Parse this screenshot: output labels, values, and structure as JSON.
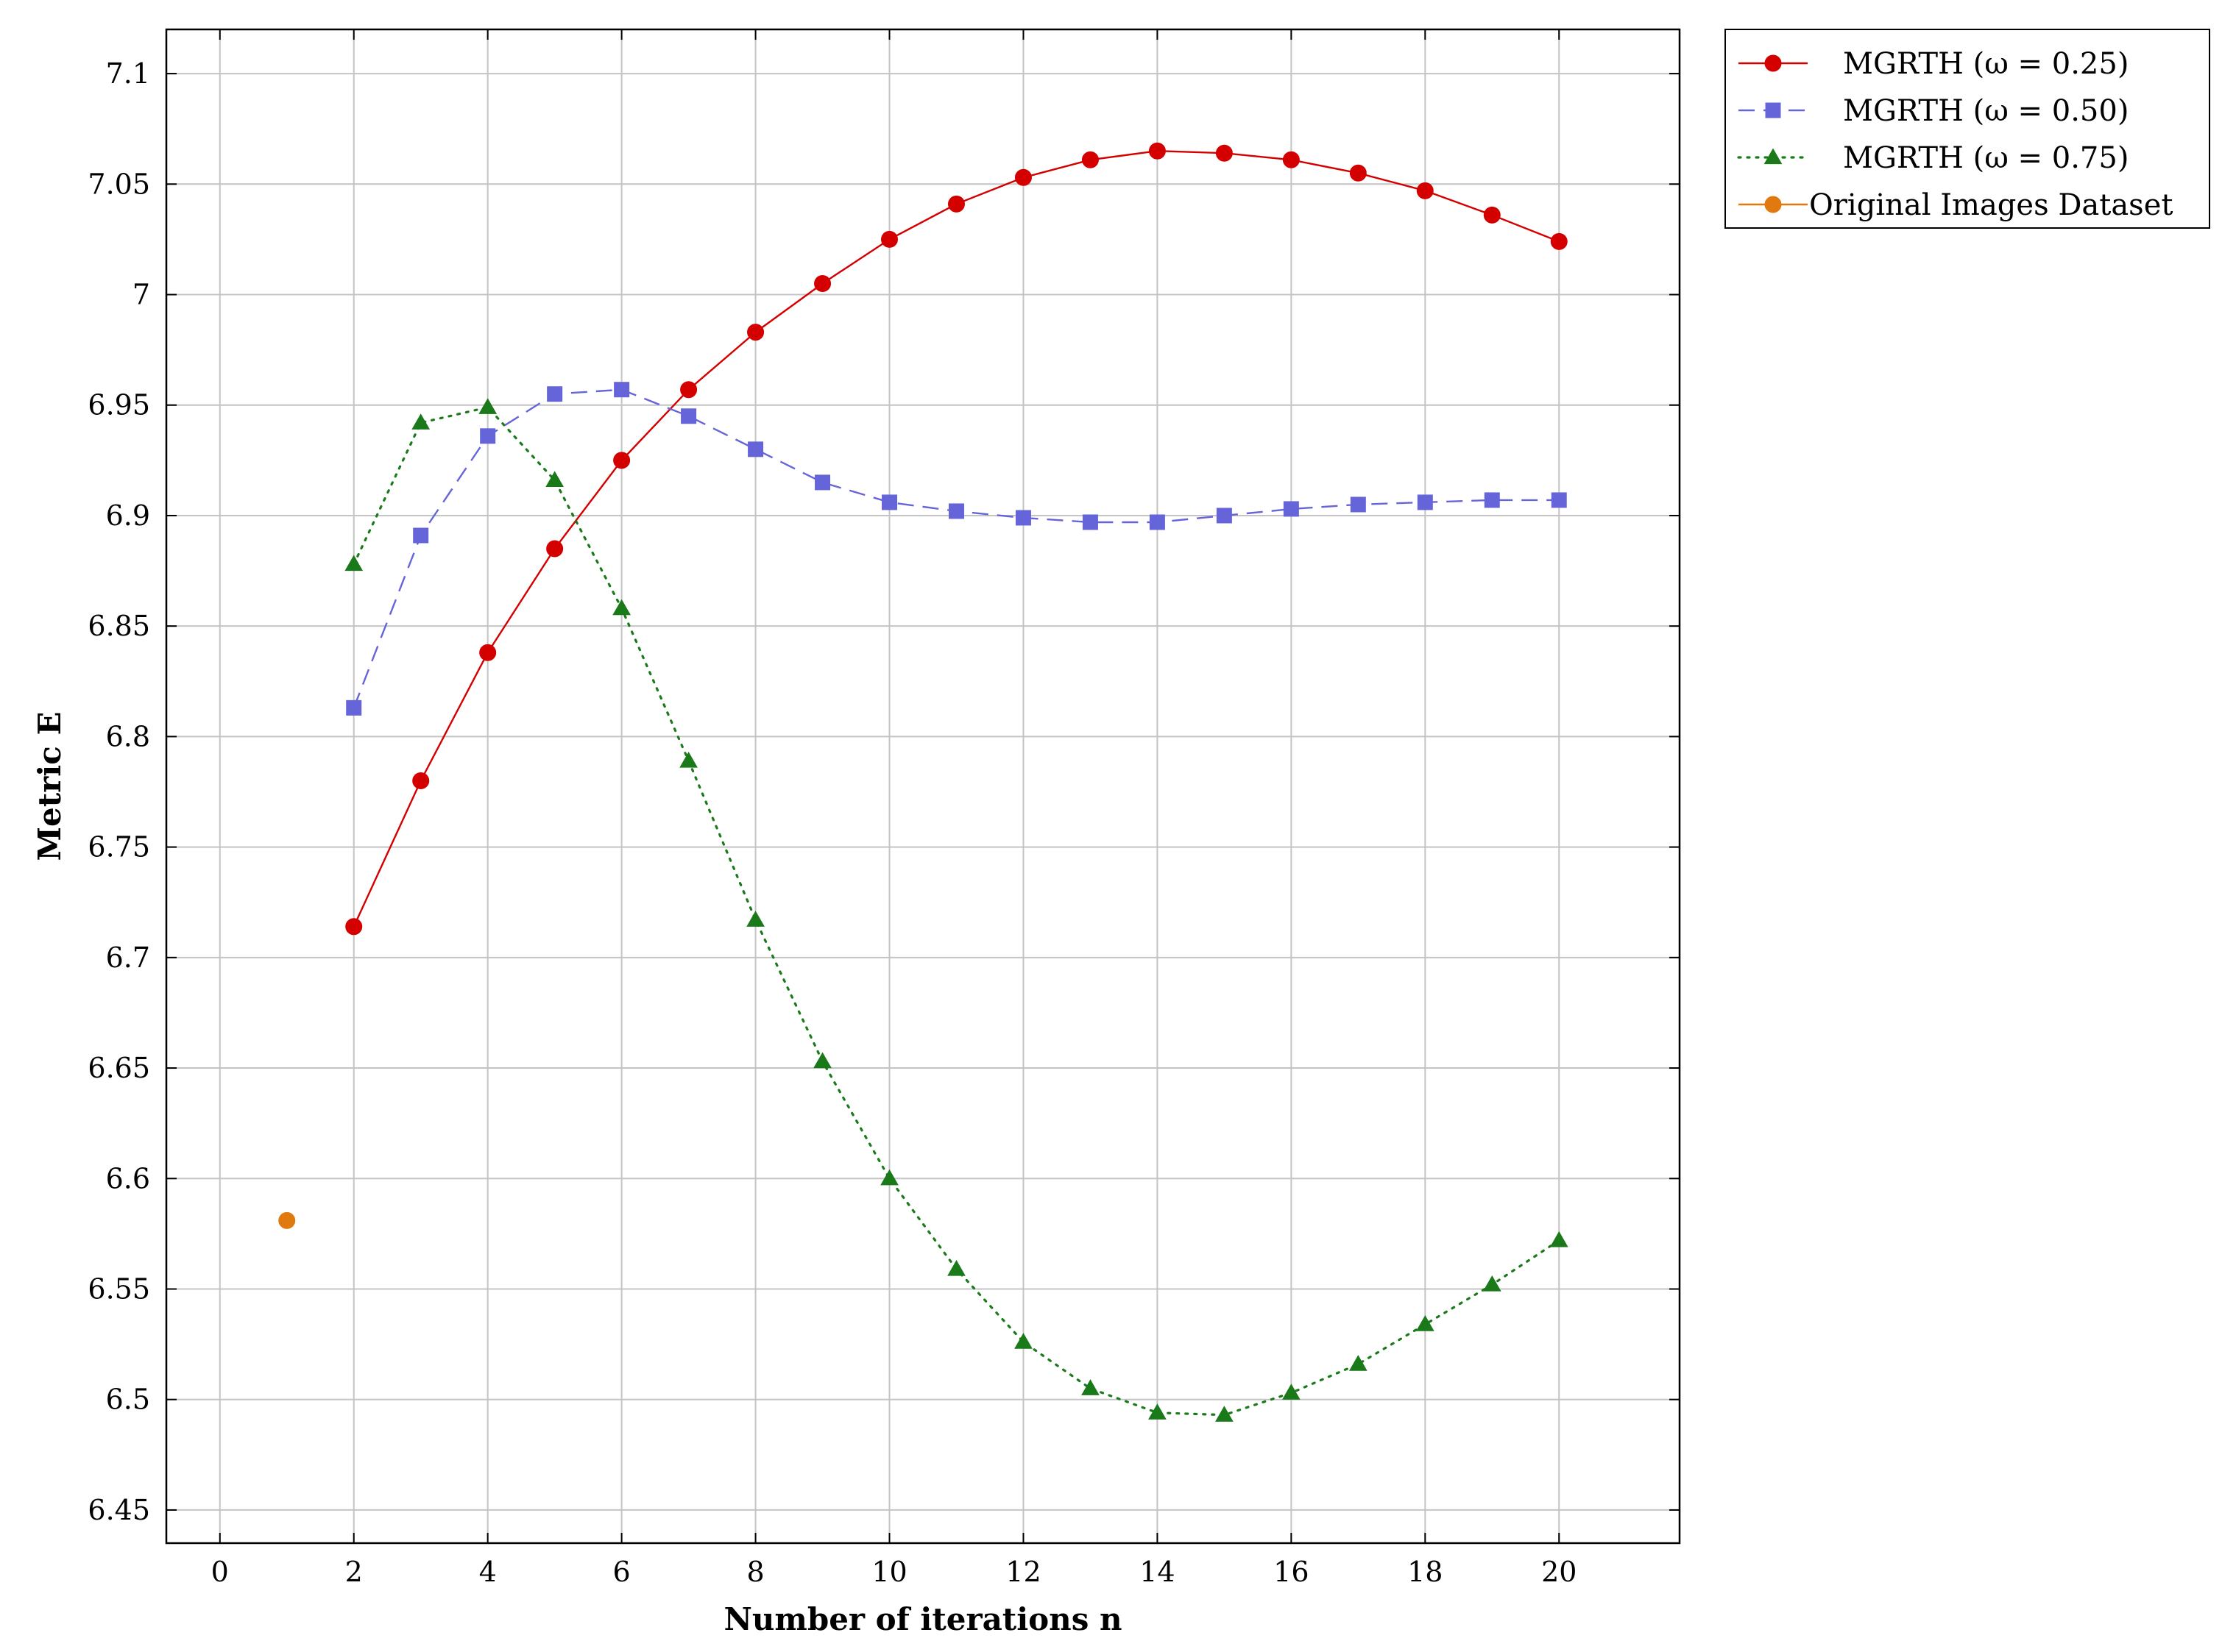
{
  "chart_data": {
    "type": "line",
    "xlabel": "Number of iterations n",
    "ylabel": "Metric E",
    "xlim": [
      -0.8,
      21.8
    ],
    "ylim": [
      6.435,
      7.12
    ],
    "xticks": [
      0,
      2,
      4,
      6,
      8,
      10,
      12,
      14,
      16,
      18,
      20
    ],
    "yticks": [
      6.45,
      6.5,
      6.55,
      6.6,
      6.65,
      6.7,
      6.75,
      6.8,
      6.85,
      6.9,
      6.95,
      7,
      7.05,
      7.1
    ],
    "grid": true,
    "legend_position": "outside-top-right",
    "series": [
      {
        "name": "MGRTH (ω = 0.25)",
        "color": "#d40000",
        "line_style": "solid",
        "marker": "circle",
        "x": [
          2,
          3,
          4,
          5,
          6,
          7,
          8,
          9,
          10,
          11,
          12,
          13,
          14,
          15,
          16,
          17,
          18,
          19,
          20
        ],
        "values": [
          6.714,
          6.78,
          6.838,
          6.885,
          6.925,
          6.957,
          6.983,
          7.005,
          7.025,
          7.041,
          7.053,
          7.061,
          7.065,
          7.064,
          7.061,
          7.055,
          7.047,
          7.036,
          7.024
        ]
      },
      {
        "name": "MGRTH (ω = 0.50)",
        "color": "#6565d9",
        "line_style": "dashed",
        "marker": "square",
        "x": [
          2,
          3,
          4,
          5,
          6,
          7,
          8,
          9,
          10,
          11,
          12,
          13,
          14,
          15,
          16,
          17,
          18,
          19,
          20
        ],
        "values": [
          6.813,
          6.891,
          6.936,
          6.955,
          6.957,
          6.945,
          6.93,
          6.915,
          6.906,
          6.902,
          6.899,
          6.897,
          6.897,
          6.9,
          6.903,
          6.905,
          6.906,
          6.907,
          6.907
        ]
      },
      {
        "name": "MGRTH (ω = 0.75)",
        "color": "#1a7a1a",
        "line_style": "dotted",
        "marker": "triangle",
        "x": [
          2,
          3,
          4,
          5,
          6,
          7,
          8,
          9,
          10,
          11,
          12,
          13,
          14,
          15,
          16,
          17,
          18,
          19,
          20
        ],
        "values": [
          6.878,
          6.942,
          6.949,
          6.916,
          6.858,
          6.789,
          6.717,
          6.653,
          6.6,
          6.559,
          6.526,
          6.505,
          6.494,
          6.493,
          6.503,
          6.516,
          6.534,
          6.552,
          6.572
        ]
      },
      {
        "name": "Original Images Dataset",
        "color": "#e07a10",
        "line_style": "solid",
        "marker": "circle",
        "x": [
          1
        ],
        "values": [
          6.581
        ]
      }
    ]
  }
}
